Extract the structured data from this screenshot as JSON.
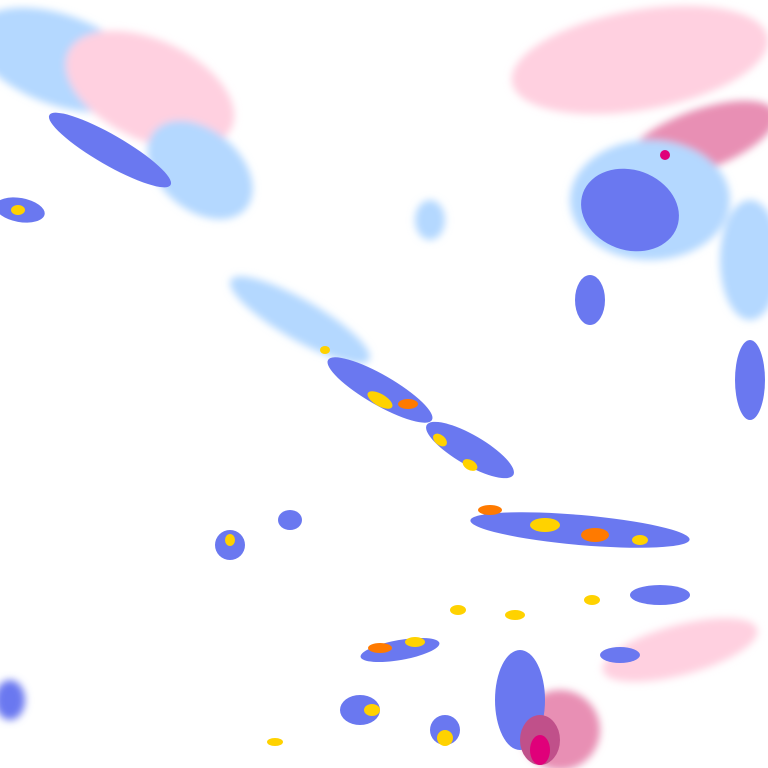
{
  "map": {
    "type": "weather-radar-tile",
    "colors": {
      "rain_light": "#b4d8ff",
      "rain_moderate": "#6a78f0",
      "rain_heavy": "#3a2fd8",
      "rain_intense": "#ffd200",
      "rain_extreme": "#ff7a00",
      "snow_light": "#ffd0e0",
      "snow_moderate": "#e88fb4",
      "snow_heavy": "#c0508a",
      "snow_extreme": "#e0007a"
    }
  }
}
